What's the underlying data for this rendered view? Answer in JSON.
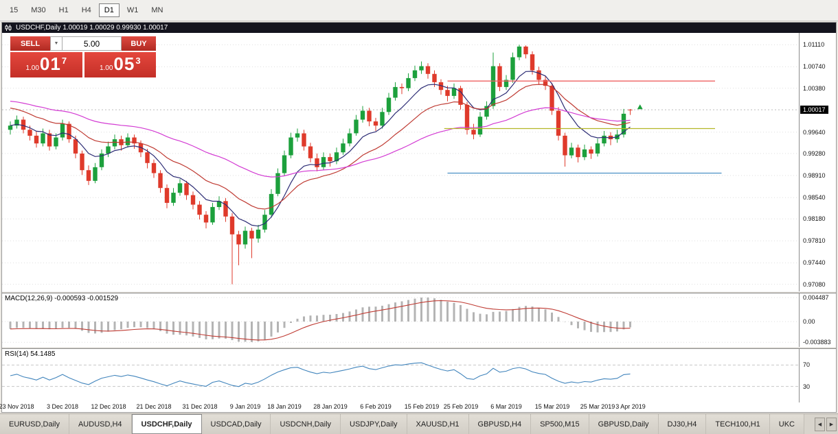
{
  "colors": {
    "up": "#1ca03c",
    "down": "#df3a2b",
    "ma_fast": "#2b2b74",
    "ma_mid": "#bf3a32",
    "ma_slow": "#d33bd3",
    "macd_hist": "#b4b4b4",
    "macd_signal": "#bf3a32",
    "rsi_line": "#4084bc",
    "level_red": "#ee6060",
    "level_olive": "#b4b626",
    "level_blue": "#4a90c4",
    "badge_bg": "#000000",
    "title_bar_bg": "#14141e",
    "trade_red": "#d8362e"
  },
  "toolbar": {
    "timeframes": [
      {
        "label": "15"
      },
      {
        "label": "M30"
      },
      {
        "label": "H1"
      },
      {
        "label": "H4"
      },
      {
        "label": "D1"
      },
      {
        "label": "W1"
      },
      {
        "label": "MN"
      }
    ],
    "active": "D1"
  },
  "chart_window": {
    "title": "USDCHF,Daily  1.00019 1.00029 0.99930 1.00017",
    "trade_panel": {
      "sell_label": "SELL",
      "buy_label": "BUY",
      "volume": "5.00",
      "dropdown_icon": "▼",
      "sell_price": {
        "prefix": "1.00",
        "big": "01",
        "sup": "7"
      },
      "buy_price": {
        "prefix": "1.00",
        "big": "05",
        "sup": "3"
      }
    },
    "macd_label": "MACD(12,26,9) -0.000593 -0.001529",
    "rsi_label": "RSI(14) 54.1485"
  },
  "chart_data": {
    "type": "candlestick",
    "symbol": "USDCHF",
    "timeframe": "Daily",
    "ohlc_display": {
      "open": "1.00019",
      "high": "1.00029",
      "low": "0.99930",
      "close": "1.00017"
    },
    "y_axis": {
      "ticks": [
        "1.01110",
        "1.00740",
        "1.00380",
        "0.99640",
        "0.99280",
        "0.98910",
        "0.98540",
        "0.98180",
        "0.97810",
        "0.97440",
        "0.97080"
      ],
      "current": "1.00017"
    },
    "x_axis": {
      "labels": [
        {
          "text": "23 Nov 2018",
          "i": 1
        },
        {
          "text": "3 Dec 2018",
          "i": 8
        },
        {
          "text": "12 Dec 2018",
          "i": 15
        },
        {
          "text": "21 Dec 2018",
          "i": 22
        },
        {
          "text": "31 Dec 2018",
          "i": 29
        },
        {
          "text": "9 Jan 2019",
          "i": 36
        },
        {
          "text": "18 Jan 2019",
          "i": 42
        },
        {
          "text": "28 Jan 2019",
          "i": 49
        },
        {
          "text": "6 Feb 2019",
          "i": 56
        },
        {
          "text": "15 Feb 2019",
          "i": 63
        },
        {
          "text": "25 Feb 2019",
          "i": 69
        },
        {
          "text": "6 Mar 2019",
          "i": 76
        },
        {
          "text": "15 Mar 2019",
          "i": 83
        },
        {
          "text": "25 Mar 2019",
          "i": 90
        },
        {
          "text": "3 Apr 2019",
          "i": 95
        }
      ]
    },
    "candles": [
      [
        0.9968,
        0.9982,
        0.996,
        0.9975
      ],
      [
        0.9975,
        0.9992,
        0.997,
        0.9985
      ],
      [
        0.9985,
        0.999,
        0.9962,
        0.9968
      ],
      [
        0.9968,
        0.9975,
        0.995,
        0.9958
      ],
      [
        0.9958,
        0.9965,
        0.9938,
        0.9945
      ],
      [
        0.9945,
        0.997,
        0.994,
        0.9962
      ],
      [
        0.9962,
        0.9968,
        0.9933,
        0.994
      ],
      [
        0.994,
        0.9962,
        0.9935,
        0.9955
      ],
      [
        0.9955,
        0.9985,
        0.995,
        0.9978
      ],
      [
        0.9978,
        0.9982,
        0.9946,
        0.9952
      ],
      [
        0.9952,
        0.9958,
        0.992,
        0.9928
      ],
      [
        0.9928,
        0.9933,
        0.9892,
        0.99
      ],
      [
        0.99,
        0.9908,
        0.9875,
        0.9882
      ],
      [
        0.9882,
        0.9912,
        0.9878,
        0.9905
      ],
      [
        0.9905,
        0.9935,
        0.99,
        0.9928
      ],
      [
        0.9928,
        0.9948,
        0.9922,
        0.994
      ],
      [
        0.994,
        0.996,
        0.9935,
        0.9952
      ],
      [
        0.9952,
        0.9958,
        0.9933,
        0.9942
      ],
      [
        0.9942,
        0.9962,
        0.9938,
        0.9955
      ],
      [
        0.9955,
        0.996,
        0.9936,
        0.9945
      ],
      [
        0.9945,
        0.995,
        0.9922,
        0.993
      ],
      [
        0.993,
        0.9936,
        0.9903,
        0.9912
      ],
      [
        0.9912,
        0.9918,
        0.9887,
        0.9895
      ],
      [
        0.9895,
        0.99,
        0.9862,
        0.987
      ],
      [
        0.987,
        0.9876,
        0.9836,
        0.9845
      ],
      [
        0.9845,
        0.987,
        0.984,
        0.9862
      ],
      [
        0.9862,
        0.9885,
        0.9857,
        0.9878
      ],
      [
        0.9878,
        0.9882,
        0.985,
        0.9858
      ],
      [
        0.9858,
        0.9864,
        0.9834,
        0.9842
      ],
      [
        0.9842,
        0.9848,
        0.9817,
        0.9825
      ],
      [
        0.9825,
        0.9831,
        0.9802,
        0.9812
      ],
      [
        0.9812,
        0.9845,
        0.9808,
        0.9838
      ],
      [
        0.9838,
        0.9856,
        0.9833,
        0.9848
      ],
      [
        0.9848,
        0.9853,
        0.9813,
        0.9822
      ],
      [
        0.9822,
        0.9828,
        0.9708,
        0.9792
      ],
      [
        0.9792,
        0.9798,
        0.974,
        0.9775
      ],
      [
        0.9775,
        0.9805,
        0.9768,
        0.9798
      ],
      [
        0.9798,
        0.9803,
        0.9752,
        0.9785
      ],
      [
        0.9785,
        0.9808,
        0.9778,
        0.98
      ],
      [
        0.98,
        0.9833,
        0.9795,
        0.9825
      ],
      [
        0.9825,
        0.9868,
        0.982,
        0.986
      ],
      [
        0.986,
        0.9903,
        0.9856,
        0.9895
      ],
      [
        0.9895,
        0.9933,
        0.989,
        0.9925
      ],
      [
        0.9925,
        0.9963,
        0.992,
        0.9955
      ],
      [
        0.9955,
        0.997,
        0.9948,
        0.9962
      ],
      [
        0.9962,
        0.9968,
        0.9933,
        0.994
      ],
      [
        0.994,
        0.9946,
        0.9913,
        0.992
      ],
      [
        0.992,
        0.9928,
        0.9898,
        0.9905
      ],
      [
        0.9905,
        0.993,
        0.99,
        0.9922
      ],
      [
        0.9922,
        0.9928,
        0.9906,
        0.9915
      ],
      [
        0.9915,
        0.9938,
        0.991,
        0.993
      ],
      [
        0.993,
        0.9953,
        0.9926,
        0.9945
      ],
      [
        0.9945,
        0.997,
        0.994,
        0.9962
      ],
      [
        0.9962,
        0.9993,
        0.9958,
        0.9985
      ],
      [
        0.9985,
        1.0008,
        0.998,
        1.0
      ],
      [
        1.0,
        1.0005,
        0.9974,
        0.9982
      ],
      [
        0.9982,
        0.9988,
        0.9966,
        0.9975
      ],
      [
        0.9975,
        1.0005,
        0.997,
        0.9998
      ],
      [
        0.9998,
        1.003,
        0.9993,
        1.0022
      ],
      [
        1.0022,
        1.0048,
        1.0017,
        1.004
      ],
      [
        1.004,
        1.0046,
        1.0028,
        1.0038
      ],
      [
        1.0038,
        1.0063,
        1.0033,
        1.0055
      ],
      [
        1.0055,
        1.0076,
        1.005,
        1.0068
      ],
      [
        1.0068,
        1.0083,
        1.0062,
        1.0075
      ],
      [
        1.0075,
        1.008,
        1.0054,
        1.0062
      ],
      [
        1.0062,
        1.0068,
        1.004,
        1.0048
      ],
      [
        1.0048,
        1.0053,
        1.0027,
        1.0035
      ],
      [
        1.0035,
        1.0042,
        1.0016,
        1.0025
      ],
      [
        1.0025,
        1.0046,
        1.002,
        1.0038
      ],
      [
        1.0038,
        1.0042,
        1.0002,
        1.001
      ],
      [
        1.001,
        1.0015,
        0.996,
        0.9968
      ],
      [
        0.9968,
        0.9978,
        0.9952,
        0.996
      ],
      [
        0.996,
        0.9998,
        0.9956,
        0.999
      ],
      [
        0.999,
        1.0016,
        0.9985,
        1.0008
      ],
      [
        1.0008,
        1.0098,
        1.0003,
        1.0075
      ],
      [
        1.0075,
        1.008,
        1.0033,
        1.004
      ],
      [
        1.004,
        1.006,
        1.0035,
        1.0052
      ],
      [
        1.0052,
        1.0098,
        1.0047,
        1.009
      ],
      [
        1.009,
        1.0111,
        1.0085,
        1.0108
      ],
      [
        1.0108,
        1.011,
        1.0088,
        1.0095
      ],
      [
        1.0095,
        1.01,
        1.0061,
        1.0068
      ],
      [
        1.0068,
        1.0074,
        1.0045,
        1.0052
      ],
      [
        1.0052,
        1.0058,
        1.0035,
        1.0042
      ],
      [
        1.0042,
        1.0047,
        0.9993,
        1.0
      ],
      [
        1.0,
        1.0006,
        0.995,
        0.9958
      ],
      [
        0.9958,
        0.9963,
        0.9906,
        0.9925
      ],
      [
        0.9925,
        0.9946,
        0.992,
        0.9938
      ],
      [
        0.9938,
        0.9943,
        0.9913,
        0.9922
      ],
      [
        0.9922,
        0.9943,
        0.9917,
        0.9935
      ],
      [
        0.9935,
        0.994,
        0.9919,
        0.9928
      ],
      [
        0.9928,
        0.9953,
        0.9923,
        0.9945
      ],
      [
        0.9945,
        0.9966,
        0.994,
        0.9958
      ],
      [
        0.9958,
        0.9964,
        0.9942,
        0.9952
      ],
      [
        0.9952,
        0.9968,
        0.9946,
        0.996
      ],
      [
        0.996,
        1.0003,
        0.9955,
        0.9995
      ],
      [
        1.00019,
        1.00029,
        0.9993,
        1.00017
      ]
    ],
    "indicators": {
      "moving_averages": [
        {
          "name": "ma-fast",
          "period": 8,
          "seed": null,
          "color_key": "ma_fast"
        },
        {
          "name": "ma-mid",
          "period": 18,
          "seed": 1.0008,
          "color_key": "ma_mid"
        },
        {
          "name": "ma-slow",
          "period": 45,
          "seed": 1.0018,
          "color_key": "ma_slow"
        }
      ],
      "macd": {
        "fast": 12,
        "slow": 26,
        "signal": 9,
        "seed_fast": 0.9975,
        "seed_slow": 0.999,
        "value": "-0.000593",
        "signal_value": "-0.001529",
        "axis_ticks": [
          "0.004487",
          "0.00",
          "-0.003883"
        ]
      },
      "rsi": {
        "period": 14,
        "value": "54.1485",
        "levels": [
          70,
          30
        ],
        "axis_ticks": [
          "70",
          "30"
        ]
      }
    },
    "levels": [
      {
        "price": 1.005,
        "i1": 67,
        "i2": 108,
        "color_key": "level_red"
      },
      {
        "price": 0.997,
        "i1": 66.5,
        "i2": 108,
        "color_key": "level_olive"
      },
      {
        "price": 0.9895,
        "i1": 67,
        "i2": 109,
        "color_key": "level_blue"
      }
    ],
    "markers": [
      {
        "i": 96.5,
        "price": 1.0006,
        "shape": "triangle-up",
        "color_key": "up"
      }
    ]
  },
  "tab_bar": {
    "tabs": [
      {
        "label": "EURUSD,Daily"
      },
      {
        "label": "AUDUSD,H4"
      },
      {
        "label": "USDCHF,Daily"
      },
      {
        "label": "USDCAD,Daily"
      },
      {
        "label": "USDCNH,Daily"
      },
      {
        "label": "USDJPY,Daily"
      },
      {
        "label": "XAUUSD,H1"
      },
      {
        "label": "GBPUSD,H4"
      },
      {
        "label": "SP500,M15"
      },
      {
        "label": "GBPUSD,Daily"
      },
      {
        "label": "DJ30,H4"
      },
      {
        "label": "TECH100,H1"
      },
      {
        "label": "UKC"
      }
    ],
    "active_index": 2,
    "scroll_left_icon": "◀",
    "scroll_right_icon": "▶"
  }
}
